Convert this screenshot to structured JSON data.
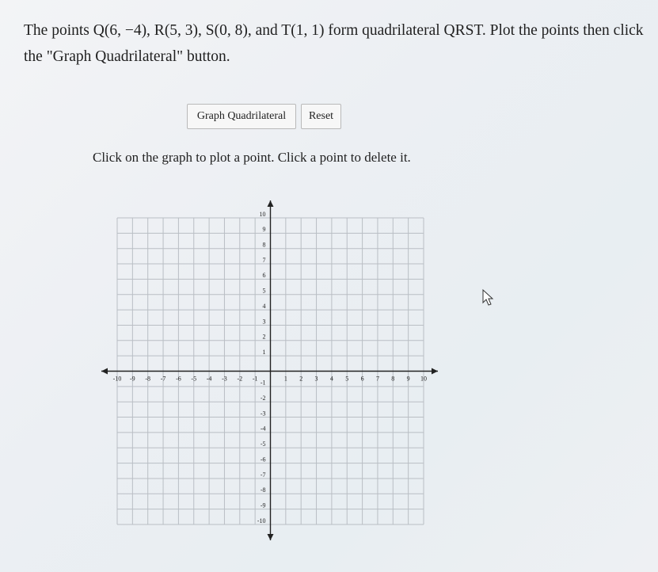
{
  "prompt": "The points Q(6, −4), R(5, 3), S(0, 8), and T(1, 1) form quadrilateral QRST. Plot the points then click the \"Graph Quadrilateral\" button.",
  "buttons": [
    "Graph Quadrilateral",
    "Reset"
  ],
  "instruction": "Click on the graph to plot a point. Click a point to delete it.",
  "graph": {
    "xlim": [
      -10,
      10
    ],
    "ylim": [
      -10,
      10
    ],
    "xticks": [
      -10,
      -9,
      -8,
      -7,
      -6,
      -5,
      -4,
      -3,
      -2,
      -1,
      1,
      2,
      3,
      4,
      5,
      6,
      7,
      8,
      9,
      10
    ],
    "yticks": [
      -10,
      -9,
      -8,
      -7,
      -6,
      -5,
      -4,
      -3,
      -2,
      -1,
      1,
      2,
      3,
      4,
      5,
      6,
      7,
      8,
      9,
      10
    ]
  }
}
